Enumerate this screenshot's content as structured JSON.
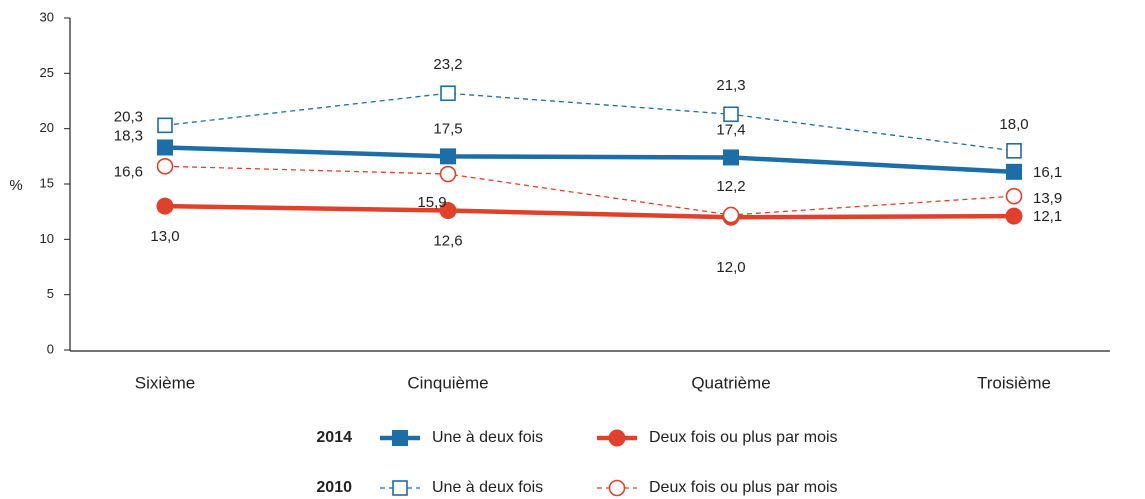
{
  "chart_data": {
    "type": "line",
    "y_label": "%",
    "categories": [
      "Sixième",
      "Cinquième",
      "Quatrième",
      "Troisième"
    ],
    "ylim": [
      0,
      30
    ],
    "yticks": [
      0,
      5,
      10,
      15,
      20,
      25,
      30
    ],
    "legend_rows": [
      {
        "label": "2014"
      },
      {
        "label": "2010"
      }
    ],
    "series": [
      {
        "name": "Une à deux fois",
        "legend_row": 0,
        "color": "#1b6ea8",
        "marker": "square",
        "filled": true,
        "dashed": false,
        "values": [
          18.3,
          17.5,
          17.4,
          16.1
        ],
        "value_labels": [
          "18,3",
          "17,5",
          "17,4",
          "16,1"
        ]
      },
      {
        "name": "Deux fois ou plus par mois",
        "legend_row": 0,
        "color": "#e1412a",
        "marker": "circle",
        "filled": true,
        "dashed": false,
        "values": [
          13.0,
          12.6,
          12.0,
          12.1
        ],
        "value_labels": [
          "13,0",
          "12,6",
          "12,0",
          "12,1"
        ]
      },
      {
        "name": "Une à deux fois",
        "legend_row": 1,
        "color": "#1b6ea8",
        "marker": "square",
        "filled": false,
        "dashed": true,
        "values": [
          20.3,
          23.2,
          21.3,
          18.0
        ],
        "value_labels": [
          "20,3",
          "23,2",
          "21,3",
          "18,0"
        ]
      },
      {
        "name": "Deux fois ou plus par mois",
        "legend_row": 1,
        "color": "#e1412a",
        "marker": "circle",
        "filled": false,
        "dashed": true,
        "values": [
          16.6,
          15.9,
          12.2,
          13.9
        ],
        "value_labels": [
          "16,6",
          "15,9",
          "12,2",
          "13,9"
        ]
      }
    ]
  }
}
